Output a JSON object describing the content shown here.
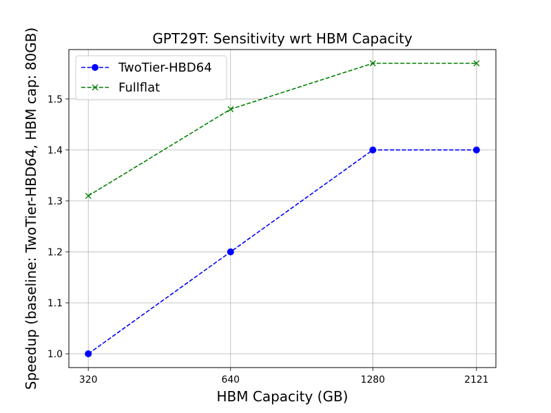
{
  "chart_data": {
    "type": "line",
    "title": "GPT29T: Sensitivity wrt HBM Capacity",
    "xlabel": "HBM Capacity (GB)",
    "ylabel": "Speedup (baseline: TwoTier-HBD64, HBM cap: 80GB)",
    "x_scale": "log",
    "x": [
      320,
      640,
      1280,
      2121
    ],
    "x_tick_labels": [
      "320",
      "640",
      "1280",
      "2121"
    ],
    "y_ticks": [
      "1.0",
      "1.1",
      "1.2",
      "1.3",
      "1.4",
      "1.5"
    ],
    "y_tick_values": [
      1.0,
      1.1,
      1.2,
      1.3,
      1.4,
      1.5
    ],
    "ylim": [
      0.973,
      1.597
    ],
    "grid": true,
    "legend_position": "top-left",
    "series": [
      {
        "name": "TwoTier-HBD64",
        "values": [
          1.0,
          1.2,
          1.4,
          1.4
        ],
        "color": "#0000ff",
        "marker": "circle",
        "linestyle": "dashed"
      },
      {
        "name": "Fullflat",
        "values": [
          1.31,
          1.48,
          1.57,
          1.57
        ],
        "color": "#008000",
        "marker": "x",
        "linestyle": "dashed"
      }
    ]
  }
}
